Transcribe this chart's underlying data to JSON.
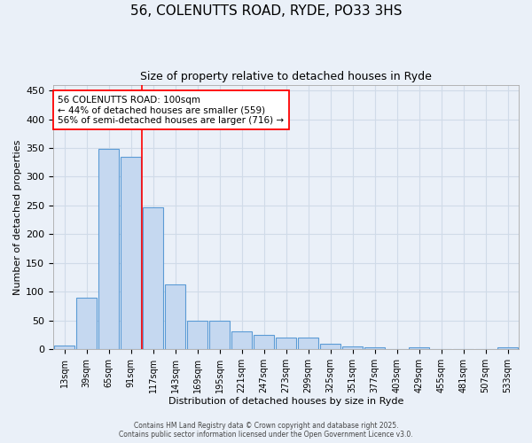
{
  "title_line1": "56, COLENUTTS ROAD, RYDE, PO33 3HS",
  "title_line2": "Size of property relative to detached houses in Ryde",
  "xlabel": "Distribution of detached houses by size in Ryde",
  "ylabel": "Number of detached properties",
  "categories": [
    "13sqm",
    "39sqm",
    "65sqm",
    "91sqm",
    "117sqm",
    "143sqm",
    "169sqm",
    "195sqm",
    "221sqm",
    "247sqm",
    "273sqm",
    "299sqm",
    "325sqm",
    "351sqm",
    "377sqm",
    "403sqm",
    "429sqm",
    "455sqm",
    "481sqm",
    "507sqm",
    "533sqm"
  ],
  "values": [
    6,
    89,
    349,
    335,
    247,
    113,
    49,
    50,
    31,
    25,
    21,
    21,
    9,
    5,
    4,
    0,
    3,
    0,
    0,
    1,
    3
  ],
  "bar_color": "#c5d8f0",
  "bar_edge_color": "#5b9bd5",
  "vline_x": 3.5,
  "vline_color": "red",
  "annotation_text": "56 COLENUTTS ROAD: 100sqm\n← 44% of detached houses are smaller (559)\n56% of semi-detached houses are larger (716) →",
  "annotation_box_color": "white",
  "annotation_box_edge_color": "red",
  "ylim": [
    0,
    460
  ],
  "yticks": [
    0,
    50,
    100,
    150,
    200,
    250,
    300,
    350,
    400,
    450
  ],
  "bg_color": "#eaf0f8",
  "grid_color": "#d0dbe8",
  "footer_line1": "Contains HM Land Registry data © Crown copyright and database right 2025.",
  "footer_line2": "Contains public sector information licensed under the Open Government Licence v3.0."
}
